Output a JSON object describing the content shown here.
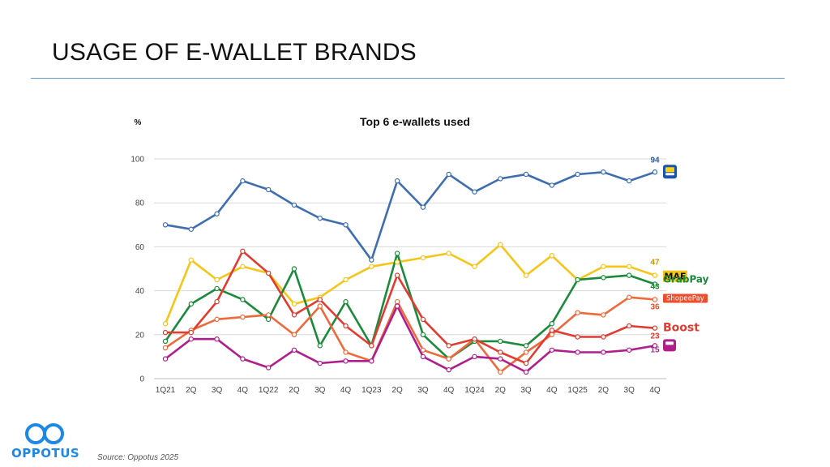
{
  "slide": {
    "title": "USAGE OF E-WALLET BRANDS",
    "source": "Source: Oppotus 2025",
    "logo_text": "OPPOTUS"
  },
  "chart_data": {
    "type": "line",
    "title": "Top 6 e-wallets used",
    "ylabel": "%",
    "xlabel": "",
    "ylim": [
      0,
      100
    ],
    "yticks": [
      0,
      20,
      40,
      60,
      80,
      100
    ],
    "grid": true,
    "categories": [
      "1Q21",
      "2Q",
      "3Q",
      "4Q",
      "1Q22",
      "2Q",
      "3Q",
      "4Q",
      "1Q23",
      "2Q",
      "3Q",
      "4Q",
      "1Q24",
      "2Q",
      "3Q",
      "4Q",
      "1Q25",
      "2Q",
      "3Q",
      "4Q"
    ],
    "series": [
      {
        "key": "tng",
        "color": "#3f6eb0",
        "label_color": "#2f5ea8",
        "end_label": "94",
        "values": [
          70,
          68,
          75,
          90,
          86,
          79,
          73,
          70,
          54,
          90,
          78,
          93,
          85,
          91,
          93,
          88,
          93,
          94,
          90,
          94
        ]
      },
      {
        "key": "mae",
        "color": "#f5c518",
        "label_color": "#c89a0a",
        "end_label": "47",
        "values": [
          25,
          54,
          45,
          51,
          48,
          34,
          37,
          45,
          51,
          53,
          55,
          57,
          51,
          61,
          47,
          56,
          45,
          51,
          51,
          47
        ]
      },
      {
        "key": "grabpay",
        "color": "#1b8a3a",
        "label_color": "#1b8a3a",
        "end_label": "43",
        "values": [
          17,
          34,
          41,
          36,
          27,
          50,
          15,
          35,
          15,
          57,
          20,
          9,
          17,
          17,
          15,
          25,
          45,
          46,
          47,
          43
        ]
      },
      {
        "key": "shopeepay",
        "color": "#ec6a3c",
        "label_color": "#e0532a",
        "end_label": "36",
        "values": [
          14,
          22,
          27,
          28,
          29,
          20,
          33,
          12,
          8,
          35,
          13,
          9,
          18,
          3,
          12,
          20,
          30,
          29,
          37,
          36
        ]
      },
      {
        "key": "boost",
        "color": "#e03c31",
        "label_color": "#e03c31",
        "end_label": "23",
        "values": [
          21,
          21,
          35,
          58,
          48,
          29,
          36,
          24,
          15,
          47,
          27,
          15,
          18,
          12,
          7,
          22,
          19,
          19,
          24,
          23
        ]
      },
      {
        "key": "other",
        "color": "#b01e8c",
        "label_color": "#b01e8c",
        "end_label": "15",
        "values": [
          9,
          18,
          18,
          9,
          5,
          13,
          7,
          8,
          8,
          33,
          10,
          4,
          10,
          9,
          3,
          13,
          12,
          12,
          13,
          15
        ]
      }
    ]
  },
  "brands": {
    "tng": {
      "name": "Touch 'n Go eWallet",
      "color": "#1a56a8",
      "accent": "#f7d117"
    },
    "mae": {
      "name": "MAE",
      "color": "#f5c518"
    },
    "grabpay": {
      "name": "GrabPay",
      "color": "#1b8a3a"
    },
    "shopeepay": {
      "name": "ShopeePay",
      "color": "#ee4d2d"
    },
    "boost": {
      "name": "Boost",
      "color": "#e03c31"
    },
    "other": {
      "name": "",
      "color": "#b01e8c"
    }
  }
}
